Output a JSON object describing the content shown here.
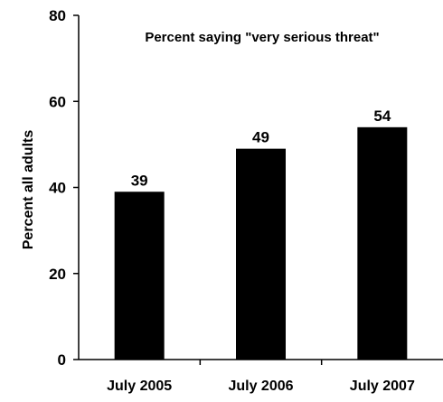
{
  "chart_data": {
    "type": "bar",
    "title": "Percent saying \"very serious threat\"",
    "xlabel": "",
    "ylabel": "Percent all adults",
    "categories": [
      "July 2005",
      "July 2006",
      "July 2007"
    ],
    "values": [
      39,
      49,
      54
    ],
    "data_labels": [
      "39",
      "49",
      "54"
    ],
    "ylim": [
      0,
      80
    ],
    "yticks": [
      0,
      20,
      40,
      60,
      80
    ],
    "ytick_labels": [
      "0",
      "20",
      "40",
      "60",
      "80"
    ],
    "grid": false,
    "legend": "none",
    "bar_color": "#000000"
  }
}
